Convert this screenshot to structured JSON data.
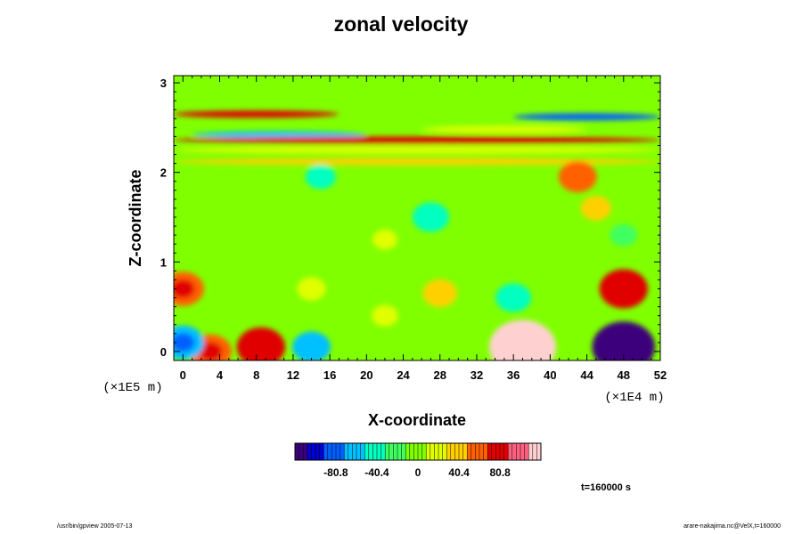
{
  "chart_data": {
    "type": "heatmap",
    "title": "zonal velocity",
    "xlabel": "X-coordinate",
    "ylabel": "Z-coordinate",
    "x_ticks": [
      "0",
      "4",
      "8",
      "12",
      "16",
      "20",
      "24",
      "28",
      "32",
      "36",
      "40",
      "44",
      "48",
      "52"
    ],
    "z_ticks": [
      "0",
      "1",
      "2",
      "3"
    ],
    "x_unit": "(×1E4 m)",
    "z_unit": "(×1E5 m)",
    "xlim": [
      -1,
      52
    ],
    "zlim": [
      -0.1,
      3.08
    ],
    "colorbar": {
      "ticks": [
        "-80.8",
        "-40.4",
        "0",
        "40.4",
        "80.8"
      ],
      "range": [
        -121,
        121
      ],
      "colors": [
        "#3c007c",
        "#0000d0",
        "#0060ff",
        "#00c0ff",
        "#00ffc0",
        "#40ff60",
        "#80ff00",
        "#e0ff00",
        "#ffd000",
        "#ff6000",
        "#e00000",
        "#ff6080",
        "#ffd0d0"
      ]
    },
    "background_value": 0,
    "features": [
      {
        "x": 48,
        "z": 0.7,
        "u": 78
      },
      {
        "x": 0,
        "z": 0.7,
        "u": 62
      },
      {
        "x": 37,
        "z": 0.05,
        "u": 125
      },
      {
        "x": 48,
        "z": 0.05,
        "u": -115
      },
      {
        "x": 36,
        "z": 0.6,
        "u": -45
      },
      {
        "x": 8.5,
        "z": 0.05,
        "u": 78
      },
      {
        "x": 3,
        "z": 0.0,
        "u": 62
      },
      {
        "x": 0,
        "z": 0.1,
        "u": -62
      },
      {
        "x": 14,
        "z": 0.05,
        "u": -52
      },
      {
        "x": 28,
        "z": 0.65,
        "u": 42
      },
      {
        "x": 14,
        "z": 0.7,
        "u": 28
      },
      {
        "x": 22,
        "z": 0.4,
        "u": 22
      },
      {
        "x": 45,
        "z": 1.6,
        "u": 32
      },
      {
        "x": 27,
        "z": 1.5,
        "u": -48
      },
      {
        "x": 15,
        "z": 1.95,
        "u": -32
      },
      {
        "x": 43,
        "z": 1.95,
        "u": 52
      },
      {
        "x": 22,
        "z": 1.25,
        "u": 18
      },
      {
        "x": 48,
        "z": 1.3,
        "u": -25
      }
    ],
    "bands": [
      {
        "z": 2.65,
        "x_from": -1,
        "x_to": 17,
        "u": 72
      },
      {
        "z": 2.62,
        "x_from": 36,
        "x_to": 52,
        "u": -72
      },
      {
        "z": 2.42,
        "x_from": 1,
        "x_to": 20,
        "u": -52
      },
      {
        "z": 2.36,
        "x_from": -1,
        "x_to": 52,
        "u": 85
      },
      {
        "z": 2.25,
        "x_from": -1,
        "x_to": 52,
        "u": 28
      },
      {
        "z": 2.12,
        "x_from": -1,
        "x_to": 52,
        "u": 38
      },
      {
        "z": 2.48,
        "x_from": 26,
        "x_to": 44,
        "u": 25
      }
    ]
  },
  "footer": {
    "left": "/usr/bin/gpview 2005-07-13",
    "right": "arare-nakajima.nc@VelX,t=160000",
    "time": "t=160000 s"
  }
}
